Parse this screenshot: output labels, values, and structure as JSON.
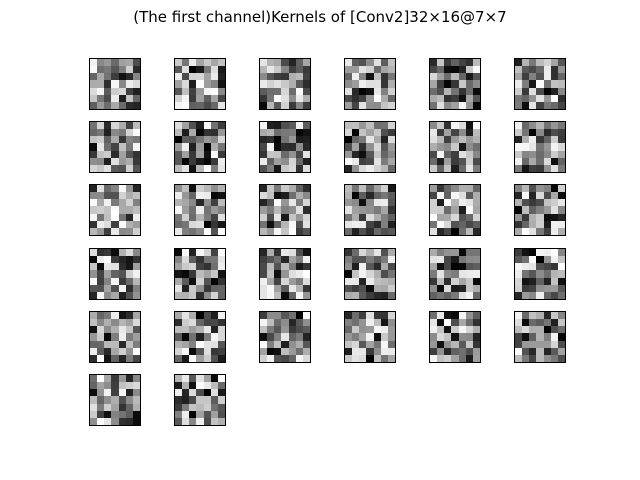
{
  "figure": {
    "title": "(The first channel)Kernels of [Conv2]32×16@7×7"
  },
  "kernels": {
    "count": 32,
    "columns": 6,
    "size": "7×7",
    "colormap": "gray",
    "dark_color": "#000000",
    "light_color": "#ffffff"
  }
}
